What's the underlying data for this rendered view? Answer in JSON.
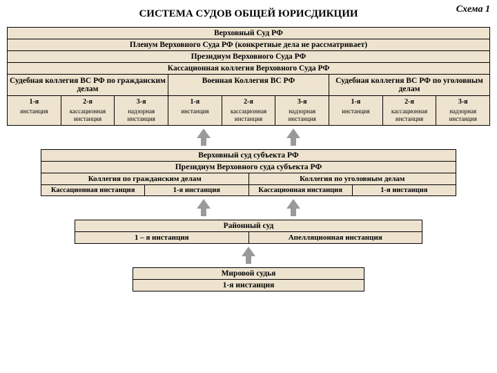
{
  "colors": {
    "cell_bg": "#ede3cf",
    "border": "#000000",
    "arrow": "#9a9a9a",
    "page_bg": "#ffffff",
    "text": "#000000"
  },
  "diagram_type": "hierarchical-flowchart",
  "scheme_label": "Схема 1",
  "main_title": "СИСТЕМА СУДОВ ОБЩЕЙ ЮРИСДИКЦИИ",
  "top": {
    "r1": "Верховный Суд РФ",
    "r2": "Пленум Верховного Суда РФ (конкретные дела не рассматривает)",
    "r3": "Президиум Верховного Суда РФ",
    "r4": "Кассационная коллегия Верховного Суда РФ",
    "collegia": [
      "Судебная коллегия ВС РФ по гражданским делам",
      "Военная Коллегия ВС РФ",
      "Судебная коллегия ВС РФ по уголовным делам"
    ],
    "instances": [
      {
        "h": "1-я",
        "t": "инстанция"
      },
      {
        "h": "2-я",
        "t": "кассационная инстанция"
      },
      {
        "h": "3-я",
        "t": "надзорная инстанция"
      },
      {
        "h": "1-я",
        "t": "инстанция"
      },
      {
        "h": "2-я",
        "t": "кассационная инстанция"
      },
      {
        "h": "3-я",
        "t": "надзорная инстанция"
      },
      {
        "h": "1-я",
        "t": "инстанция"
      },
      {
        "h": "2-я",
        "t": "кассационная инстанция"
      },
      {
        "h": "3-я",
        "t": "надзорная инстанция"
      }
    ]
  },
  "subject": {
    "r1": "Верховный суд субъекта РФ",
    "r2": "Президиум Верховного суда субъекта РФ",
    "collegia": [
      "Коллегия по гражданским делам",
      "Коллегия по уголовным делам"
    ],
    "instances": [
      "Кассационная инстанция",
      "1-я инстанция",
      "Кассационная инстанция",
      "1-я инстанция"
    ]
  },
  "district": {
    "r1": "Районный суд",
    "cells": [
      "1 – я инстанция",
      "Апелляционная инстанция"
    ]
  },
  "magistrate": {
    "r1": "Мировой судья",
    "r2": "1-я инстанция"
  }
}
